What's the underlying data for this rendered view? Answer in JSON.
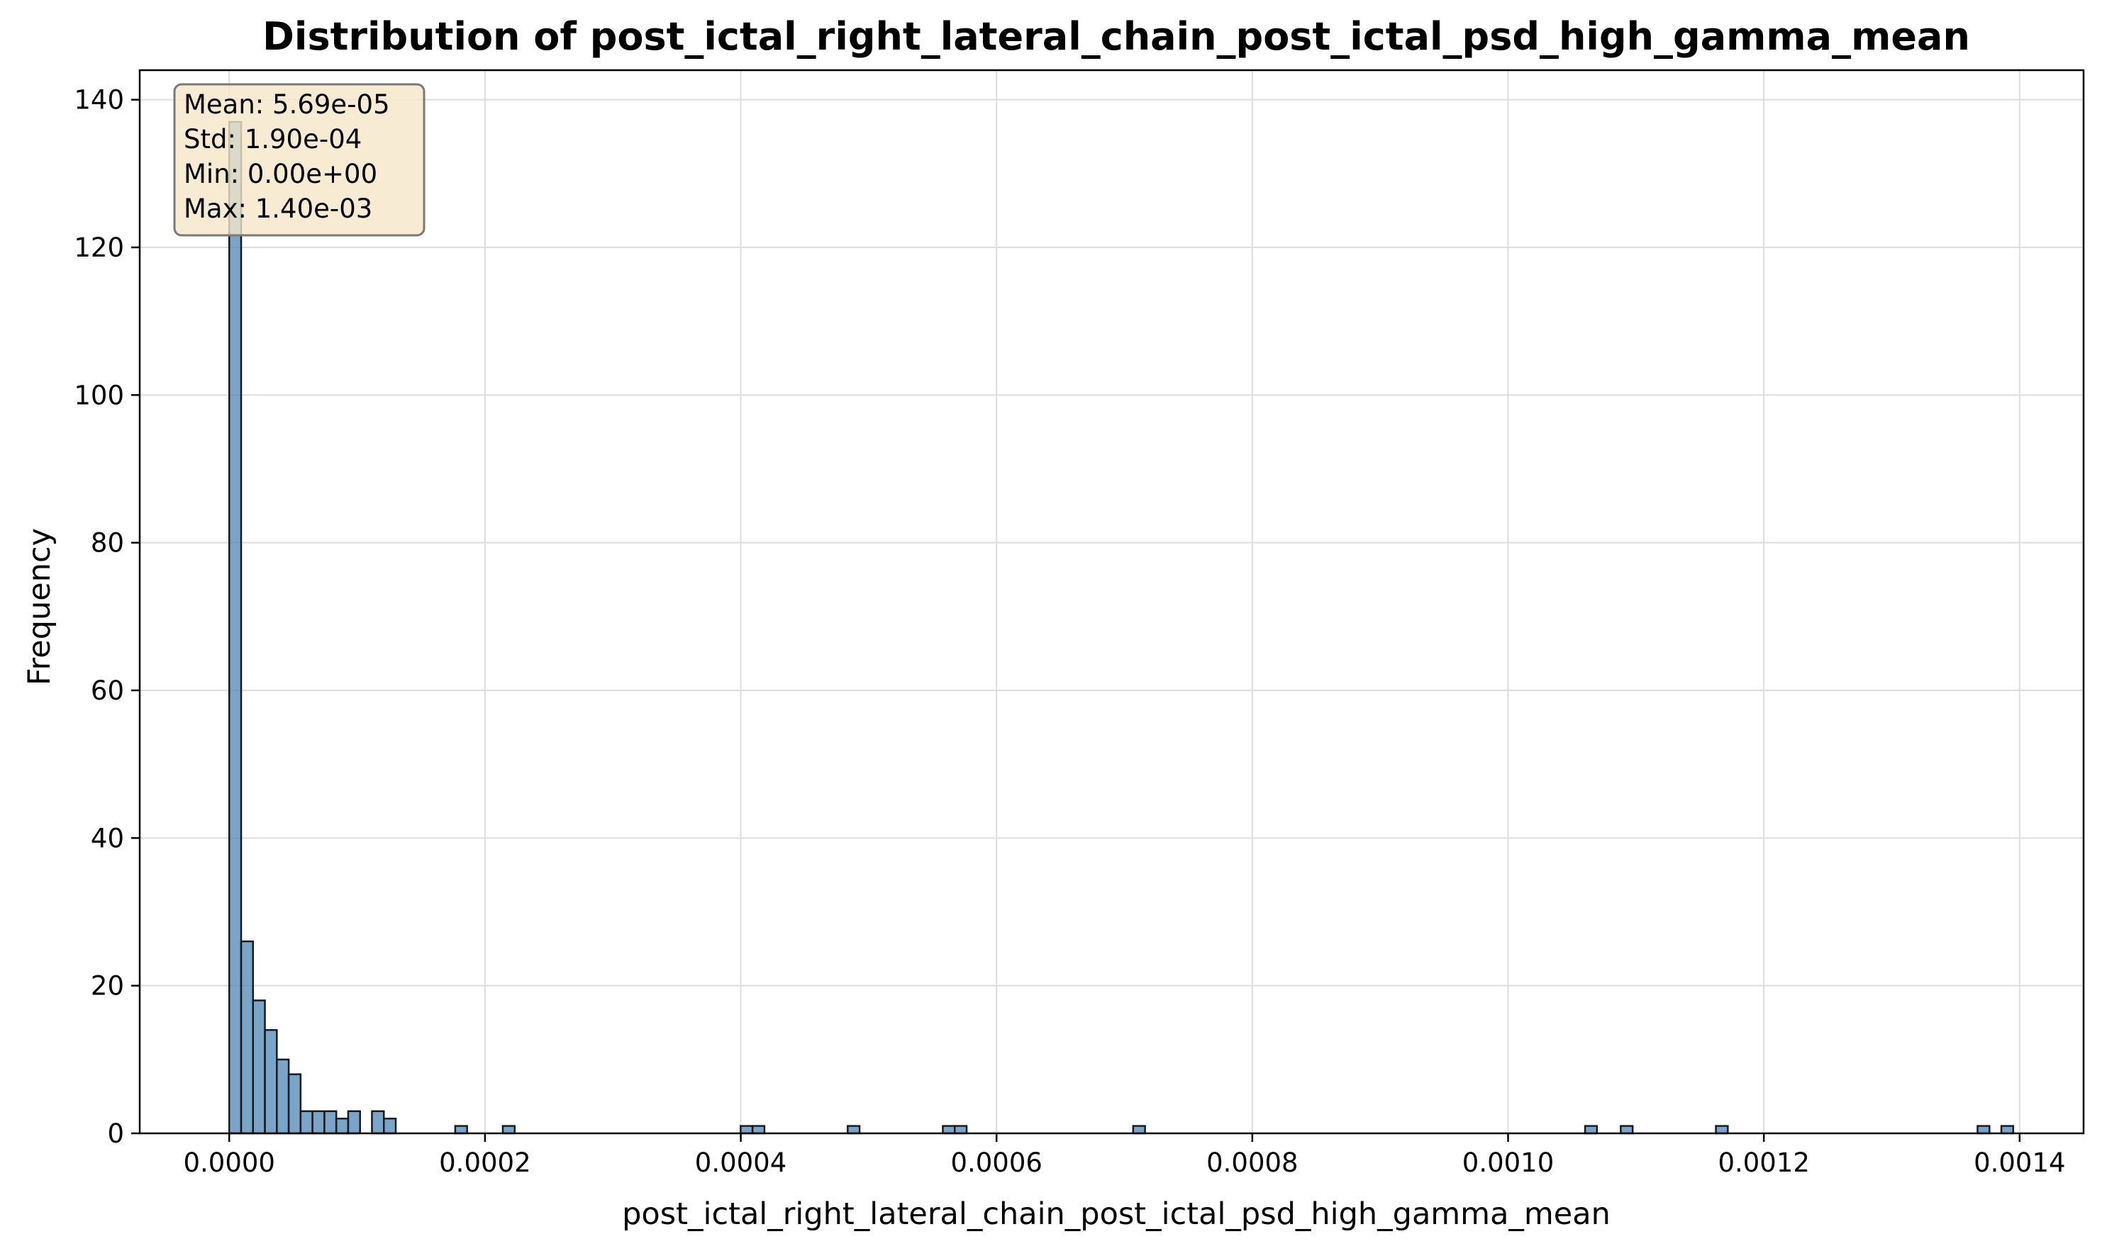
{
  "chart_data": {
    "type": "bar",
    "title": "Distribution of post_ictal_right_lateral_chain_post_ictal_psd_high_gamma_mean",
    "xlabel": "post_ictal_right_lateral_chain_post_ictal_psd_high_gamma_mean",
    "ylabel": "Frequency",
    "xlim": [
      -7e-05,
      0.00145
    ],
    "ylim": [
      0,
      144
    ],
    "grid": true,
    "bin_width": 9.31e-06,
    "bars": [
      {
        "x": 0.0,
        "count": 137
      },
      {
        "x": 9.3e-06,
        "count": 26
      },
      {
        "x": 1.86e-05,
        "count": 18
      },
      {
        "x": 2.79e-05,
        "count": 14
      },
      {
        "x": 3.72e-05,
        "count": 10
      },
      {
        "x": 4.65e-05,
        "count": 8
      },
      {
        "x": 5.58e-05,
        "count": 3
      },
      {
        "x": 6.51e-05,
        "count": 3
      },
      {
        "x": 7.44e-05,
        "count": 3
      },
      {
        "x": 8.37e-05,
        "count": 2
      },
      {
        "x": 9.3e-05,
        "count": 3
      },
      {
        "x": 0.0001116,
        "count": 3
      },
      {
        "x": 0.0001209,
        "count": 2
      },
      {
        "x": 0.0001767,
        "count": 1
      },
      {
        "x": 0.0002139,
        "count": 1
      },
      {
        "x": 0.0003999,
        "count": 1
      },
      {
        "x": 0.0004092,
        "count": 1
      },
      {
        "x": 0.0004836,
        "count": 1
      },
      {
        "x": 0.000558,
        "count": 1
      },
      {
        "x": 0.0005673,
        "count": 1
      },
      {
        "x": 0.0007068,
        "count": 1
      },
      {
        "x": 0.0010602,
        "count": 1
      },
      {
        "x": 0.0010881,
        "count": 1
      },
      {
        "x": 0.0011625,
        "count": 1
      },
      {
        "x": 0.0013671,
        "count": 1
      },
      {
        "x": 0.0013857,
        "count": 1
      }
    ],
    "x_ticks": [
      "0.0000",
      "0.0002",
      "0.0004",
      "0.0006",
      "0.0008",
      "0.0010",
      "0.0012",
      "0.0014"
    ],
    "x_tick_values": [
      0,
      0.0002,
      0.0004,
      0.0006,
      0.0008,
      0.001,
      0.0012,
      0.0014
    ],
    "y_ticks": [
      "0",
      "20",
      "40",
      "60",
      "80",
      "100",
      "120",
      "140"
    ],
    "y_tick_values": [
      0,
      20,
      40,
      60,
      80,
      100,
      120,
      140
    ],
    "stats_box": [
      "Mean: 5.69e-05",
      "Std: 1.90e-04",
      "Min: 0.00e+00",
      "Max: 1.40e-03"
    ],
    "colors": {
      "bar_fill": "#4f86b7",
      "bar_edge": "#1a1a1a",
      "grid": "#dddddd",
      "stats_fill": "#f5e6c8",
      "stats_edge": "#7a7a7a"
    }
  }
}
